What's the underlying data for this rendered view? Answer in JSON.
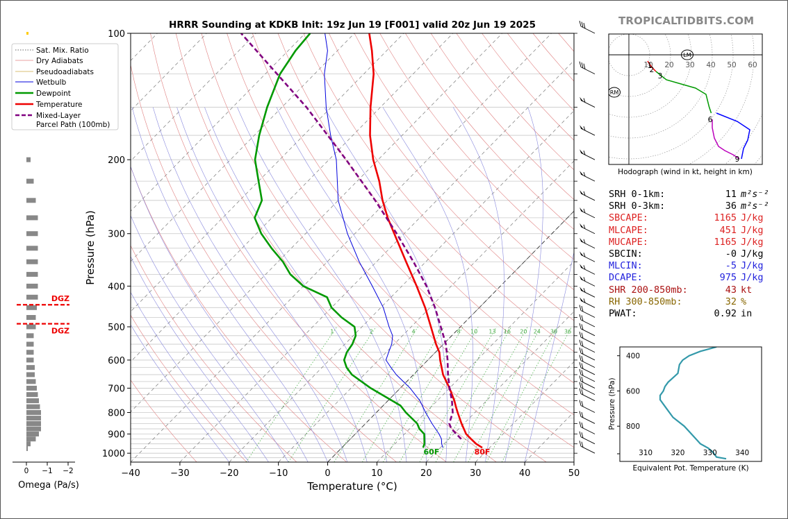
{
  "brand": "TROPICALTIDBITS.COM",
  "chart_data": [
    {
      "name": "skewt",
      "type": "line",
      "title": "HRRR Sounding at KDKB Init: 19z Jun 19 [F001] valid 20z Jun 19 2025",
      "xlabel": "Temperature (°C)",
      "ylabel": "Pressure (hPa)",
      "xlim": [
        -40,
        50
      ],
      "ylim": [
        1050,
        100
      ],
      "yscale": "log",
      "xticks": [
        -40,
        -30,
        -20,
        -10,
        0,
        10,
        20,
        30,
        40,
        50
      ],
      "xtick_labels": [
        "−40",
        "−30",
        "−20",
        "−10",
        "0",
        "10",
        "20",
        "30",
        "40",
        "50"
      ],
      "yticks": [
        100,
        200,
        300,
        400,
        500,
        600,
        700,
        800,
        900,
        1000
      ],
      "legend": {
        "placement": "left",
        "items": [
          "Sat. Mix. Ratio",
          "Dry Adiabats",
          "Pseudoadiabats",
          "Wetbulb",
          "Dewpoint",
          "Temperature",
          "Mixed-Layer\nParcel Path (100mb)"
        ]
      },
      "mixing_ratio_labels": [
        "1",
        "2",
        "4",
        "6",
        "8",
        "10",
        "13",
        "16",
        "20",
        "24",
        "30",
        "36"
      ],
      "surface_labels": {
        "dewpoint": "60F",
        "temperature": "80F"
      },
      "series": [
        {
          "name": "Temperature",
          "color": "#ee0000",
          "p": [
            970,
            950,
            925,
            900,
            850,
            800,
            775,
            750,
            700,
            650,
            600,
            575,
            550,
            500,
            450,
            400,
            350,
            300,
            275,
            250,
            225,
            200,
            175,
            150,
            125,
            110,
            100
          ],
          "t": [
            28.5,
            26.5,
            24.5,
            22.5,
            19.5,
            16.5,
            15.0,
            13.5,
            10.0,
            6.0,
            2.5,
            0.8,
            -1.5,
            -6.0,
            -11.0,
            -17.0,
            -24.0,
            -32.0,
            -36.5,
            -41.0,
            -45.5,
            -51.0,
            -56.5,
            -62.0,
            -68.0,
            -73.0,
            -77.0
          ]
        },
        {
          "name": "Dewpoint",
          "color": "#009900",
          "p": [
            970,
            950,
            900,
            875,
            850,
            800,
            770,
            700,
            650,
            625,
            600,
            575,
            550,
            525,
            500,
            475,
            450,
            425,
            400,
            375,
            350,
            325,
            300,
            275,
            250,
            225,
            200,
            175,
            150,
            125,
            110,
            100
          ],
          "t": [
            16.5,
            16.0,
            14.0,
            12.0,
            10.5,
            6.0,
            3.5,
            -6.0,
            -12.5,
            -15.0,
            -17.0,
            -18.0,
            -18.5,
            -19.5,
            -21.5,
            -26.0,
            -30.0,
            -33.0,
            -40.0,
            -45.0,
            -49.0,
            -54.0,
            -59.0,
            -63.5,
            -65.5,
            -70.0,
            -75.0,
            -79.0,
            -83.0,
            -87.0,
            -88.5,
            -89.0
          ]
        },
        {
          "name": "Wetbulb",
          "color": "#0000dd",
          "p": [
            970,
            950,
            925,
            900,
            850,
            800,
            750,
            700,
            650,
            625,
            600,
            575,
            550,
            525,
            500,
            450,
            400,
            350,
            300,
            250,
            200,
            175,
            150,
            125,
            110,
            100
          ],
          "t": [
            20.5,
            19.5,
            18.5,
            17.0,
            13.5,
            10.0,
            6.5,
            2.0,
            -3.5,
            -6.0,
            -8.5,
            -9.5,
            -10.5,
            -12.0,
            -14.5,
            -19.5,
            -26.0,
            -33.5,
            -41.5,
            -50.0,
            -58.5,
            -64.5,
            -71.0,
            -78.0,
            -82.0,
            -86.0
          ]
        },
        {
          "name": "Mixed-Layer Parcel Path (100mb)",
          "color": "#800080",
          "p": [
            925,
            875,
            850,
            800,
            750,
            700,
            650,
            600,
            550,
            500,
            450,
            400,
            350,
            300,
            250,
            200,
            150,
            100
          ],
          "t": [
            22.5,
            18.5,
            17.0,
            15.5,
            13.0,
            10.0,
            7.0,
            4.0,
            0.5,
            -4.0,
            -9.0,
            -15.0,
            -22.5,
            -31.5,
            -42.5,
            -56.5,
            -75.0,
            -103.0
          ]
        }
      ]
    },
    {
      "name": "omega",
      "type": "bar",
      "xlabel": "Omega (Pa/s)",
      "xticks": [
        0,
        -1,
        -2
      ],
      "xtick_labels": [
        "0",
        "−1",
        "−2"
      ],
      "dgz_label": "DGZ",
      "dgz_pressures": [
        455,
        505
      ],
      "p": [
        100,
        160,
        200,
        225,
        250,
        275,
        300,
        325,
        350,
        375,
        400,
        425,
        450,
        475,
        500,
        525,
        550,
        575,
        600,
        625,
        650,
        675,
        700,
        725,
        750,
        775,
        800,
        825,
        850,
        875,
        900,
        925,
        950,
        975
      ],
      "omega": [
        0.05,
        -0.05,
        -0.2,
        -0.35,
        -0.45,
        -0.55,
        -0.55,
        -0.55,
        -0.55,
        -0.55,
        -0.55,
        -0.55,
        -0.5,
        -0.45,
        -0.45,
        -0.35,
        -0.35,
        -0.35,
        -0.35,
        -0.4,
        -0.4,
        -0.45,
        -0.5,
        -0.55,
        -0.6,
        -0.65,
        -0.7,
        -0.7,
        -0.7,
        -0.7,
        -0.6,
        -0.45,
        -0.2,
        -0.05
      ]
    },
    {
      "name": "hodograph",
      "type": "line",
      "caption": "Hodograph (wind in kt, height in km)",
      "ring_labels": [
        "10",
        "20",
        "30",
        "40",
        "50",
        "60"
      ],
      "markers": [
        {
          "label": "LM",
          "u": 28,
          "v": 0
        },
        {
          "label": "RM",
          "u": -7,
          "v": -18
        }
      ],
      "height_labels": [
        {
          "label": "1",
          "u": 10,
          "v": -5
        },
        {
          "label": "2",
          "u": 11,
          "v": -7
        },
        {
          "label": "3",
          "u": 15,
          "v": -10
        },
        {
          "label": "6",
          "u": 39,
          "v": -31
        },
        {
          "label": "9",
          "u": 52,
          "v": -50
        }
      ],
      "segments": [
        {
          "color": "#ee0000",
          "u": [
            9,
            11,
            13
          ],
          "v": [
            -3,
            -6,
            -8
          ]
        },
        {
          "color": "#009900",
          "u": [
            13,
            18,
            25,
            32,
            37,
            38.5,
            39.5
          ],
          "v": [
            -8,
            -12,
            -14,
            -16,
            -19,
            -25,
            -28
          ]
        },
        {
          "color": "#0000ff",
          "u": [
            42,
            52,
            58,
            57,
            55,
            54
          ],
          "v": [
            -28,
            -32,
            -36,
            -41,
            -45,
            -50
          ]
        },
        {
          "color": "#bb00bb",
          "u": [
            40,
            40,
            41,
            43,
            46,
            50,
            53
          ],
          "v": [
            -31,
            -35,
            -40,
            -44,
            -46,
            -48,
            -50
          ]
        }
      ]
    },
    {
      "name": "theta-e",
      "type": "line",
      "xlabel": "Equivalent Pot. Temperature (K)",
      "ylabel": "Pressure (hPa)",
      "xlim": [
        302,
        346
      ],
      "ylim": [
        1000,
        350
      ],
      "xticks": [
        310,
        320,
        330,
        340
      ],
      "yticks": [
        400,
        600,
        800
      ],
      "color": "#3399aa",
      "p": [
        350,
        375,
        400,
        425,
        450,
        500,
        525,
        550,
        575,
        600,
        625,
        650,
        700,
        750,
        800,
        850,
        900,
        925,
        950,
        975,
        985
      ],
      "theta_e": [
        332,
        327,
        323.5,
        321.5,
        320.5,
        320,
        318.5,
        317,
        316,
        315.5,
        314.5,
        314.5,
        316.5,
        318.5,
        322,
        324.5,
        327,
        329.5,
        331,
        332,
        335
      ]
    }
  ],
  "stats": [
    {
      "label": "SRH 0-1km:",
      "value": "11",
      "unit": "m²s⁻²",
      "color": "#000000"
    },
    {
      "label": "SRH 0-3km:",
      "value": "36",
      "unit": "m²s⁻²",
      "color": "#000000"
    },
    {
      "label": "SBCAPE:",
      "value": "1165",
      "unit": "J/kg",
      "color": "#dd2222"
    },
    {
      "label": "MLCAPE:",
      "value": "451",
      "unit": "J/kg",
      "color": "#dd2222"
    },
    {
      "label": "MUCAPE:",
      "value": "1165",
      "unit": "J/kg",
      "color": "#dd2222"
    },
    {
      "label": "SBCIN:",
      "value": "-0",
      "unit": "J/kg",
      "color": "#000000"
    },
    {
      "label": "MLCIN:",
      "value": "-5",
      "unit": "J/kg",
      "color": "#2222dd"
    },
    {
      "label": "DCAPE:",
      "value": "975",
      "unit": "J/kg",
      "color": "#2222dd"
    },
    {
      "label": "SHR 200-850mb:",
      "value": "43",
      "unit": "kt",
      "color": "#aa1111"
    },
    {
      "label": "RH 300-850mb:",
      "value": "32",
      "unit": "%",
      "color": "#886600"
    },
    {
      "label": "PWAT:",
      "value": "0.92",
      "unit": "in",
      "color": "#000000"
    }
  ],
  "barbs_p": [
    100,
    125,
    150,
    175,
    200,
    225,
    250,
    275,
    300,
    325,
    350,
    375,
    400,
    425,
    450,
    475,
    500,
    525,
    550,
    575,
    600,
    625,
    650,
    675,
    700,
    725,
    750,
    800,
    850,
    900,
    950,
    1000
  ]
}
